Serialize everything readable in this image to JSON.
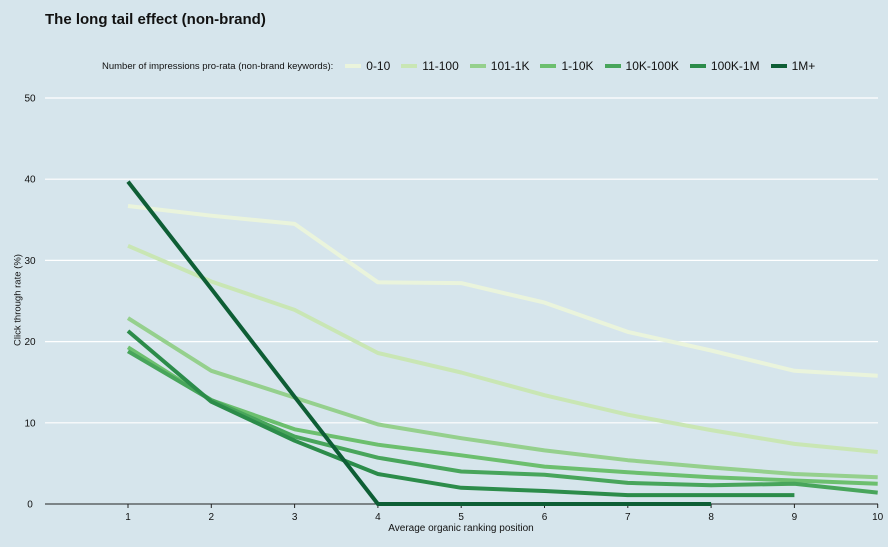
{
  "chart_data": {
    "type": "line",
    "title": "The long tail effect (non-brand)",
    "legend_title": "Number of impressions pro-rata (non-brand keywords):",
    "legend_position": "top",
    "xlabel": "Average organic ranking position",
    "ylabel": "Click through rate (%)",
    "xlim": [
      0,
      10
    ],
    "ylim": [
      0,
      50
    ],
    "x_ticks": [
      1,
      2,
      3,
      4,
      5,
      6,
      7,
      8,
      9,
      10
    ],
    "y_ticks": [
      0,
      10,
      20,
      30,
      40,
      50
    ],
    "grid": true,
    "series": [
      {
        "name": "0-10",
        "color": "#eaf4dc",
        "x": [
          1,
          2,
          3,
          4,
          5,
          6,
          7,
          8,
          9,
          10
        ],
        "values": [
          36.7,
          35.5,
          34.5,
          27.3,
          27.2,
          24.8,
          21.2,
          18.9,
          16.4,
          15.8
        ]
      },
      {
        "name": "11-100",
        "color": "#c9e6b4",
        "x": [
          1,
          2,
          3,
          4,
          5,
          6,
          7,
          8,
          9,
          10
        ],
        "values": [
          31.8,
          27.4,
          23.9,
          18.6,
          16.2,
          13.4,
          11.0,
          9.1,
          7.4,
          6.4
        ]
      },
      {
        "name": "101-1K",
        "color": "#95d08d",
        "x": [
          1,
          2,
          3,
          4,
          5,
          6,
          7,
          8,
          9,
          10
        ],
        "values": [
          22.9,
          16.4,
          13.1,
          9.8,
          8.1,
          6.6,
          5.4,
          4.5,
          3.7,
          3.3
        ]
      },
      {
        "name": "1-10K",
        "color": "#6cbf6e",
        "x": [
          1,
          2,
          3,
          4,
          5,
          6,
          7,
          8,
          9,
          10
        ],
        "values": [
          19.3,
          12.8,
          9.2,
          7.3,
          6.0,
          4.6,
          3.9,
          3.3,
          2.9,
          2.5
        ]
      },
      {
        "name": "10K-100K",
        "color": "#48a55b",
        "x": [
          1,
          2,
          3,
          4,
          5,
          6,
          7,
          8,
          9,
          10
        ],
        "values": [
          18.8,
          12.8,
          8.3,
          5.7,
          4.0,
          3.6,
          2.6,
          2.3,
          2.5,
          1.4
        ]
      },
      {
        "name": "100K-1M",
        "color": "#2c8c4a",
        "x": [
          1,
          2,
          3,
          4,
          5,
          6,
          7,
          8,
          9
        ],
        "values": [
          21.3,
          12.6,
          7.8,
          3.7,
          2.0,
          1.6,
          1.1,
          1.1,
          1.1
        ]
      },
      {
        "name": "1M+",
        "color": "#0e5e35",
        "x": [
          1,
          2,
          3,
          4,
          5,
          6,
          7,
          8
        ],
        "values": [
          39.7,
          26.5,
          13.2,
          0.0,
          0.0,
          0.0,
          0.0,
          0.0
        ]
      }
    ]
  }
}
